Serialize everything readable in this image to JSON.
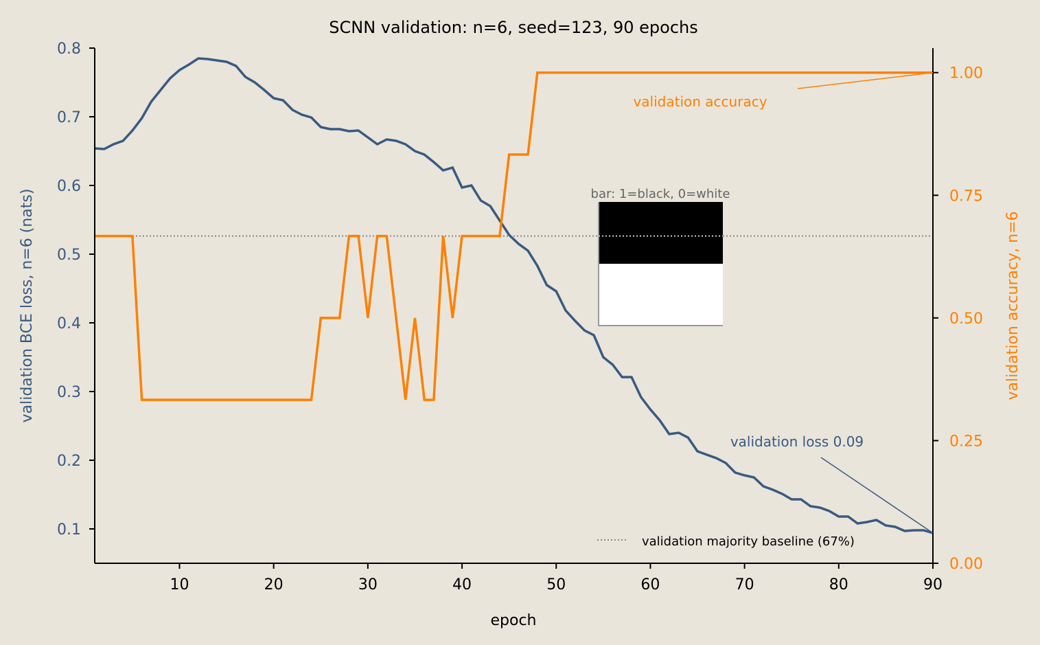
{
  "chart_data": {
    "type": "line",
    "title": "SCNN validation: n=6, seed=123, 90 epochs",
    "xlabel": "epoch",
    "ylabel_left": "validation BCE loss, n=6 (nats)",
    "ylabel_right": "validation accuracy, n=6",
    "xlim": [
      1,
      90
    ],
    "ylim_left": [
      0.05,
      0.8
    ],
    "ylim_right": [
      0.0,
      1.05
    ],
    "xticks": [
      "10",
      "20",
      "30",
      "40",
      "50",
      "60",
      "70",
      "80",
      "90"
    ],
    "yticks_left": [
      "0.1",
      "0.2",
      "0.3",
      "0.4",
      "0.5",
      "0.6",
      "0.7",
      "0.8"
    ],
    "yticks_right": [
      "0.00",
      "0.25",
      "0.50",
      "0.75",
      "1.00"
    ],
    "grid": false,
    "colors": {
      "background": "#e9e5db",
      "loss": "#3a5a80",
      "accuracy": "#ff8000",
      "baseline": "#888888",
      "axis": "#000000",
      "inset_caption": "#666666"
    },
    "series": [
      {
        "axis": "left",
        "x": [
          1,
          2,
          3,
          4,
          5,
          6,
          7,
          8,
          9,
          10,
          11,
          12,
          13,
          14,
          15,
          16,
          17,
          18,
          19,
          20,
          21,
          22,
          23,
          24,
          25,
          26,
          27,
          28,
          29,
          30,
          31,
          32,
          33,
          34,
          35,
          36,
          37,
          38,
          39,
          40,
          41,
          42,
          43,
          44,
          45,
          46,
          47,
          48,
          49,
          50,
          51,
          52,
          53,
          54,
          55,
          56,
          57,
          58,
          59,
          60,
          61,
          62,
          63,
          64,
          65,
          66,
          67,
          68,
          69,
          70,
          71,
          72,
          73,
          74,
          75,
          76,
          77,
          78,
          79,
          80,
          81,
          82,
          83,
          84,
          85,
          86,
          87,
          88,
          89,
          90
        ],
        "values": [
          0.654,
          0.653,
          0.66,
          0.665,
          0.68,
          0.698,
          0.722,
          0.739,
          0.756,
          0.768,
          0.776,
          0.785,
          0.784,
          0.782,
          0.78,
          0.774,
          0.758,
          0.75,
          0.739,
          0.727,
          0.724,
          0.71,
          0.703,
          0.699,
          0.685,
          0.682,
          0.682,
          0.679,
          0.68,
          0.67,
          0.66,
          0.667,
          0.665,
          0.66,
          0.65,
          0.645,
          0.634,
          0.622,
          0.626,
          0.597,
          0.6,
          0.578,
          0.57,
          0.549,
          0.528,
          0.515,
          0.505,
          0.483,
          0.455,
          0.446,
          0.418,
          0.403,
          0.389,
          0.382,
          0.35,
          0.339,
          0.321,
          0.321,
          0.292,
          0.274,
          0.258,
          0.238,
          0.24,
          0.233,
          0.213,
          0.208,
          0.203,
          0.196,
          0.182,
          0.178,
          0.175,
          0.162,
          0.157,
          0.151,
          0.143,
          0.143,
          0.133,
          0.131,
          0.126,
          0.118,
          0.118,
          0.108,
          0.11,
          0.113,
          0.105,
          0.103,
          0.097,
          0.098,
          0.098,
          0.094
        ]
      },
      {
        "axis": "right",
        "x": [
          1,
          5,
          6,
          24,
          25,
          27,
          28,
          29,
          30,
          31,
          32,
          34,
          35,
          36,
          37,
          38,
          39,
          40,
          44,
          45,
          47,
          48,
          90
        ],
        "values": [
          0.667,
          0.667,
          0.333,
          0.333,
          0.5,
          0.5,
          0.667,
          0.667,
          0.5,
          0.667,
          0.667,
          0.333,
          0.5,
          0.333,
          0.333,
          0.667,
          0.5,
          0.667,
          0.667,
          0.833,
          0.833,
          1.0,
          1.0
        ]
      }
    ],
    "baseline": {
      "value": 0.667,
      "axis": "right",
      "legend": "validation majority baseline (67%)"
    },
    "annotations": {
      "accuracy": {
        "text": "validation accuracy",
        "target_x": 90,
        "target_y": 1.0
      },
      "loss": {
        "text": "validation loss 0.09",
        "target_x": 90,
        "target_y": 0.094
      }
    },
    "inset": {
      "caption": "bar: 1=black, 0=white",
      "cells": [
        1,
        0
      ]
    }
  }
}
